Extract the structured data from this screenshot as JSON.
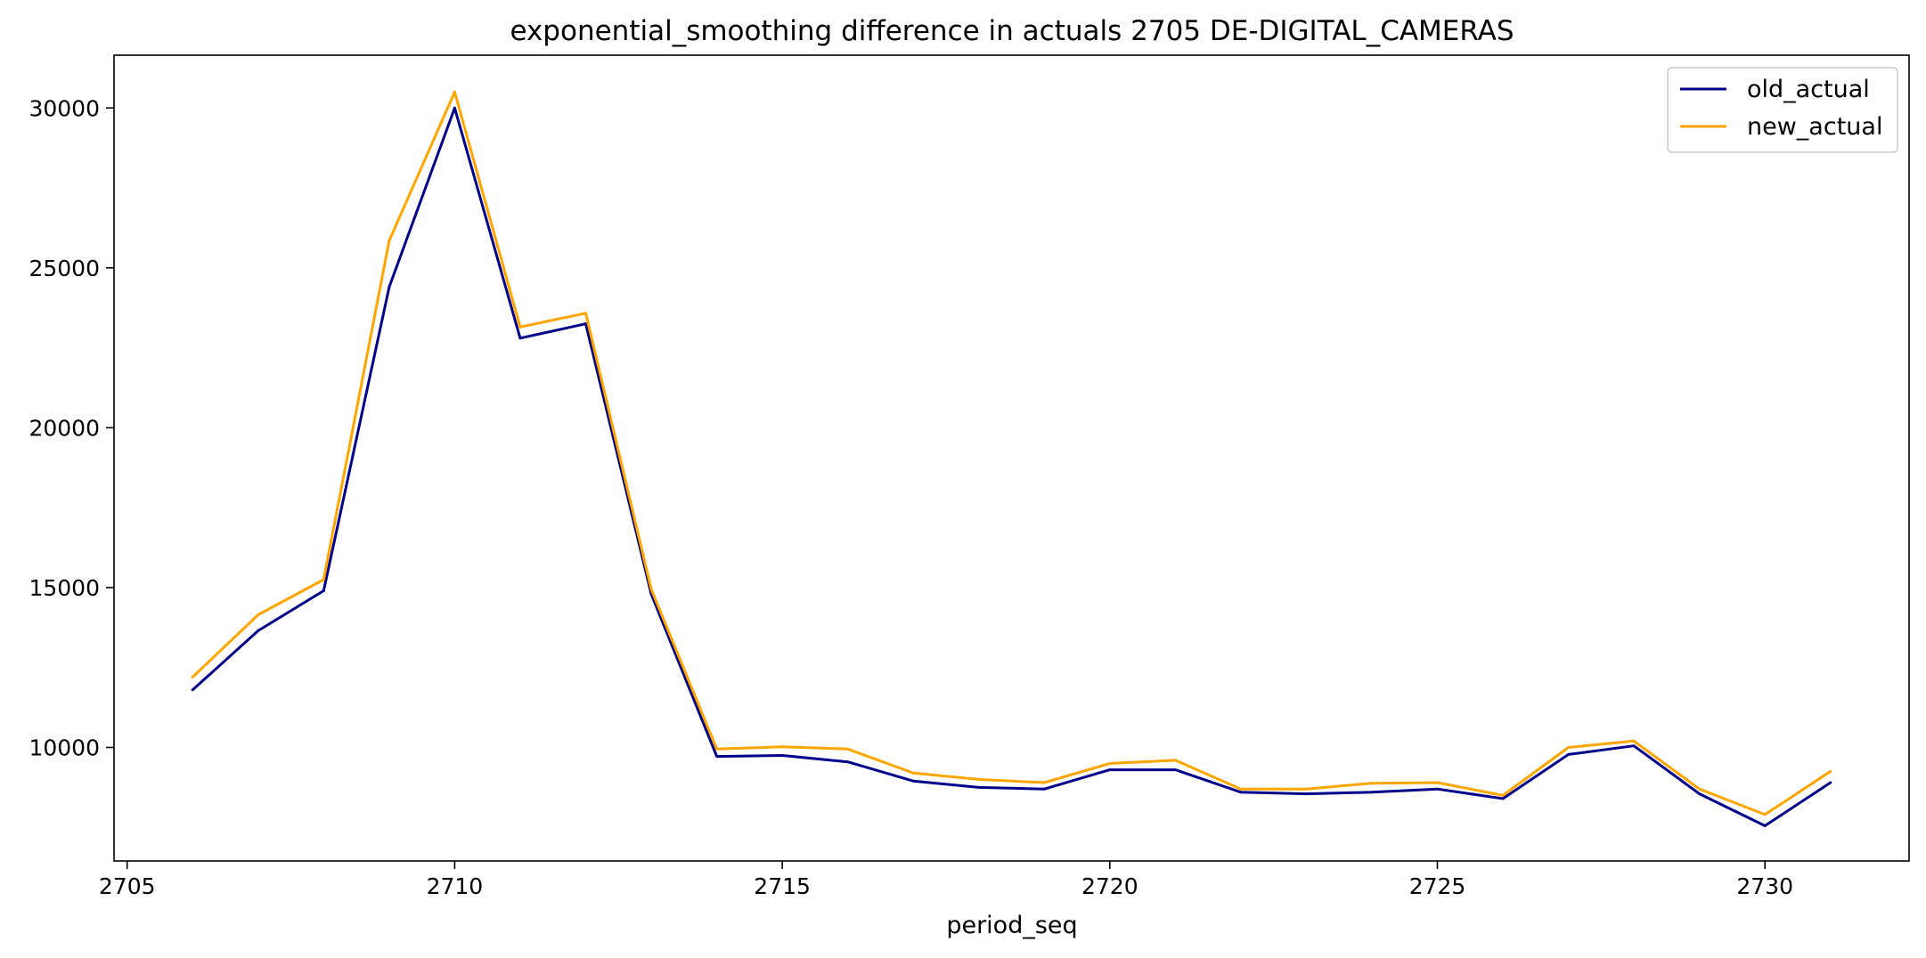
{
  "chart_data": {
    "type": "line",
    "title": "exponential_smoothing difference in actuals 2705 DE-DIGITAL_CAMERAS",
    "xlabel": "period_seq",
    "ylabel": "",
    "xlim": [
      2704.8,
      2732.2
    ],
    "ylim": [
      6450,
      31650
    ],
    "xticks": [
      2705,
      2710,
      2715,
      2720,
      2725,
      2730
    ],
    "yticks": [
      10000,
      15000,
      20000,
      25000,
      30000
    ],
    "grid": false,
    "legend_position": "top-right",
    "x": [
      2706,
      2707,
      2708,
      2709,
      2710,
      2711,
      2712,
      2713,
      2714,
      2715,
      2716,
      2717,
      2718,
      2719,
      2720,
      2721,
      2722,
      2723,
      2724,
      2725,
      2726,
      2727,
      2728,
      2729,
      2730,
      2731
    ],
    "series": [
      {
        "name": "old_actual",
        "color": "#00008b",
        "values": [
          11800,
          13650,
          14900,
          24400,
          30000,
          22800,
          23250,
          14800,
          9720,
          9750,
          9550,
          8950,
          8750,
          8700,
          9300,
          9300,
          8600,
          8550,
          8600,
          8700,
          8400,
          9780,
          10050,
          8550,
          7550,
          8900
        ]
      },
      {
        "name": "new_actual",
        "color": "#ffa500",
        "values": [
          12200,
          14150,
          15250,
          25850,
          30500,
          23150,
          23580,
          14950,
          9950,
          10020,
          9950,
          9200,
          9000,
          8900,
          9500,
          9600,
          8700,
          8700,
          8880,
          8900,
          8500,
          10000,
          10200,
          8700,
          7900,
          9250
        ]
      }
    ]
  }
}
